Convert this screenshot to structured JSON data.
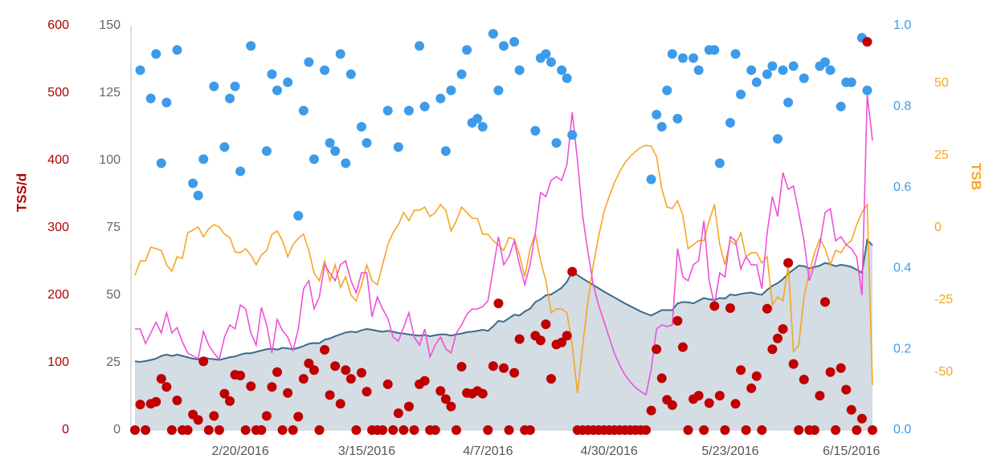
{
  "chart_data": {
    "type": "combo",
    "y_label": "TSS/d",
    "y4_label": "TSB",
    "ylim": [
      0,
      600
    ],
    "yticks": [
      0,
      100,
      200,
      300,
      400,
      500,
      600
    ],
    "y2lim": [
      0,
      150
    ],
    "y2ticks": [
      0,
      25,
      50,
      75,
      100,
      125,
      150
    ],
    "y3lim": [
      0,
      1
    ],
    "y3ticks": [
      {
        "value": 0,
        "label": "0.0"
      },
      0.2,
      0.4,
      0.6,
      0.8,
      {
        "value": 1,
        "label": "1.0"
      }
    ],
    "y4lim": [
      -70,
      70
    ],
    "y4ticks": [
      -50,
      -25,
      0,
      25,
      50
    ],
    "categories": [
      null,
      null,
      null,
      null,
      null,
      null,
      null,
      null,
      null,
      null,
      null,
      null,
      null,
      null,
      null,
      null,
      null,
      null,
      null,
      null,
      "2/20/2016",
      null,
      null,
      null,
      null,
      null,
      null,
      null,
      null,
      null,
      null,
      null,
      null,
      null,
      null,
      null,
      null,
      null,
      null,
      null,
      null,
      null,
      null,
      null,
      "3/15/2016",
      null,
      null,
      null,
      null,
      null,
      null,
      null,
      null,
      null,
      null,
      null,
      null,
      null,
      null,
      null,
      null,
      null,
      null,
      null,
      null,
      null,
      null,
      "4/7/2016",
      null,
      null,
      null,
      null,
      null,
      null,
      null,
      null,
      null,
      null,
      null,
      null,
      null,
      null,
      null,
      null,
      null,
      null,
      null,
      null,
      null,
      null,
      "4/30/2016",
      null,
      null,
      null,
      null,
      null,
      null,
      null,
      null,
      null,
      null,
      null,
      null,
      null,
      null,
      null,
      null,
      null,
      null,
      null,
      null,
      null,
      null,
      "5/23/2016",
      null,
      null,
      null,
      null,
      null,
      null,
      null,
      null,
      null,
      null,
      null,
      null,
      null,
      null,
      null,
      null,
      null,
      null,
      null,
      null,
      null,
      null,
      "6/15/2016",
      null,
      null,
      null,
      null
    ],
    "series": [
      {
        "kind": "area",
        "axis": "y2",
        "color": "#3b6a8a",
        "fill": "#cdd6df",
        "values": [
          25.5,
          25.3,
          25.6,
          26,
          26.5,
          27.5,
          28,
          27.5,
          28,
          27.5,
          27,
          26.5,
          26.2,
          27,
          26.5,
          26.3,
          26,
          26.5,
          27,
          27.3,
          28,
          28.5,
          28.5,
          29,
          29.5,
          30,
          30.2,
          29.8,
          30.5,
          30.3,
          30,
          30.5,
          31.2,
          32,
          32.3,
          32.2,
          33.5,
          34,
          34.8,
          35.5,
          36.2,
          36.5,
          36.3,
          37,
          37.5,
          37.2,
          36.8,
          36.5,
          36.8,
          36.5,
          36,
          35.8,
          35.5,
          35.2,
          35,
          35.3,
          34.8,
          35.2,
          35.5,
          35.5,
          35,
          35.5,
          35.8,
          36.3,
          36.5,
          36.8,
          37.2,
          36.8,
          38.5,
          40.5,
          40.2,
          41.5,
          42.8,
          42.5,
          44,
          45,
          47.5,
          48.5,
          50,
          50.3,
          51.5,
          52.8,
          55,
          58.8,
          57.5,
          56.2,
          55,
          53.8,
          52.6,
          51.4,
          50.3,
          49.2,
          48.1,
          47,
          46,
          45,
          44,
          43.2,
          42.5,
          43.5,
          44.5,
          44.5,
          44.5,
          47,
          47.5,
          47.4,
          47,
          48,
          49,
          48.5,
          48.3,
          49,
          48.8,
          50.3,
          50,
          50.5,
          50.8,
          51,
          50.5,
          50.2,
          52,
          53.5,
          54.5,
          56,
          58,
          59.5,
          61,
          60.8,
          60,
          60.5,
          61,
          62,
          61.5,
          60.8,
          61.3,
          61,
          60.5,
          59.5,
          58.3,
          70.5,
          68.5
        ]
      },
      {
        "kind": "line",
        "axis": "y4",
        "color": "#f5a623",
        "values": [
          -16.4,
          -11.4,
          -11.4,
          -6.7,
          -7.2,
          -7.8,
          -12.8,
          -15,
          -10,
          -10.6,
          -1.7,
          -0.8,
          0.3,
          -3.1,
          -0.3,
          1.1,
          0.3,
          -2.2,
          -3.3,
          -8.3,
          -8.6,
          -7.2,
          -9.4,
          -12.8,
          -9.4,
          -7.8,
          -2.2,
          -1.1,
          -4.4,
          -10,
          -5.8,
          -3.6,
          -2.2,
          -7.8,
          -15.6,
          -18.3,
          -11.4,
          -18.3,
          -12.8,
          -20.6,
          -16.9,
          -23.3,
          -25.3,
          -19.7,
          -12.8,
          -18.3,
          -19.7,
          -12.8,
          -5.8,
          -1.7,
          1.1,
          5.3,
          2.5,
          6.1,
          6.1,
          7.2,
          3.9,
          5.3,
          8.1,
          6.1,
          -1.1,
          2.5,
          7.2,
          5.3,
          3.3,
          3.3,
          -2.2,
          -2.2,
          -4.4,
          -6.1,
          -7.8,
          -3.3,
          -3.9,
          -9.4,
          -16.9,
          -7.2,
          -2.2,
          -11.4,
          -18.3,
          -29.4,
          -28.1,
          -28.1,
          -29.4,
          -40.6,
          -57.2,
          -40.6,
          -25.3,
          -12.8,
          -3.1,
          5.3,
          10.8,
          15.6,
          19.4,
          22.5,
          24.7,
          26.4,
          27.8,
          28.6,
          28.3,
          24.7,
          13.6,
          7.2,
          6.7,
          9.4,
          4.4,
          -7.2,
          -5.8,
          -4.4,
          -4.4,
          2.5,
          8.1,
          -5.8,
          -12.8,
          -4.4,
          -5.8,
          -1.7,
          -10,
          -8.6,
          -8.6,
          -12.2,
          -10,
          -26.7,
          -23.9,
          -25.3,
          -12.8,
          -42.8,
          -40.6,
          -23.9,
          -15.6,
          -8.6,
          -3.9,
          -7.2,
          -12.8,
          -7.8,
          -8.6,
          -5.8,
          -4.4,
          1.1,
          5.3,
          8.1,
          -54.4
        ]
      },
      {
        "kind": "line",
        "axis": "y2",
        "color": "#f050d8",
        "values": [
          37.5,
          37.5,
          32.1,
          36,
          40,
          36,
          43.5,
          36,
          38,
          32.7,
          28.6,
          27.5,
          26.5,
          36.6,
          31.5,
          28.6,
          26.2,
          34.5,
          39,
          37.5,
          46.4,
          45,
          36,
          31.5,
          45.5,
          39,
          28.6,
          41,
          36.9,
          34.5,
          29.5,
          37.5,
          52.4,
          55.4,
          45,
          49.4,
          61.3,
          58.3,
          55.4,
          61.3,
          62.8,
          55.4,
          50.9,
          58.3,
          58.3,
          42,
          49.4,
          45,
          41.4,
          34.5,
          33,
          38.1,
          43.5,
          34.5,
          31.5,
          37.5,
          27.1,
          31.5,
          34.5,
          30.1,
          28.6,
          36,
          39,
          42.9,
          44.9,
          44.9,
          45.8,
          47.9,
          59.8,
          71.7,
          61.3,
          64.3,
          70.2,
          61.3,
          53.9,
          61.3,
          73.2,
          88.1,
          86.6,
          92.6,
          94,
          92.6,
          98.5,
          117.9,
          100,
          79.2,
          65.8,
          53.9,
          46.4,
          40.5,
          34.5,
          28.6,
          24.1,
          20.5,
          17.9,
          15.8,
          14.3,
          13.1,
          22.6,
          37.5,
          39,
          38.4,
          39,
          67.3,
          56.8,
          55.4,
          61.3,
          62.8,
          77.7,
          55.4,
          46.4,
          58.3,
          56.8,
          71.7,
          70.2,
          59.8,
          64.3,
          61.3,
          61.3,
          52.4,
          73.2,
          86.6,
          79.2,
          95.5,
          89.3,
          90.5,
          80.7,
          70.2,
          55.4,
          61.3,
          68.8,
          80.7,
          82.1,
          70.2,
          71.7,
          68.8,
          67.3,
          64.3,
          50,
          124.4,
          107.4
        ]
      },
      {
        "kind": "scatter",
        "axis": "y3",
        "color": "#3d9be9",
        "values": [
          null,
          0.89,
          null,
          0.82,
          0.93,
          0.66,
          0.81,
          null,
          0.94,
          null,
          null,
          0.61,
          0.58,
          0.67,
          null,
          0.85,
          null,
          0.7,
          0.82,
          0.85,
          0.64,
          null,
          0.95,
          null,
          null,
          0.69,
          0.88,
          0.84,
          null,
          0.86,
          null,
          0.53,
          0.79,
          0.91,
          0.67,
          null,
          0.89,
          0.71,
          0.69,
          0.93,
          0.66,
          0.88,
          null,
          0.75,
          0.71,
          null,
          null,
          null,
          0.79,
          null,
          0.7,
          null,
          0.79,
          null,
          0.95,
          0.8,
          null,
          null,
          0.82,
          0.69,
          0.84,
          null,
          0.88,
          0.94,
          0.76,
          0.77,
          0.75,
          null,
          0.98,
          0.84,
          0.95,
          null,
          0.96,
          0.89,
          null,
          null,
          0.74,
          0.92,
          0.93,
          0.91,
          0.71,
          0.89,
          0.87,
          0.73,
          null,
          null,
          null,
          null,
          null,
          null,
          null,
          null,
          null,
          null,
          null,
          null,
          null,
          null,
          0.62,
          0.78,
          0.75,
          0.84,
          0.93,
          0.77,
          0.92,
          null,
          0.92,
          0.89,
          null,
          0.94,
          0.94,
          0.66,
          null,
          0.76,
          0.93,
          0.83,
          null,
          0.89,
          0.86,
          null,
          0.88,
          0.9,
          0.72,
          0.89,
          0.81,
          0.9,
          null,
          0.87,
          null,
          null,
          0.9,
          0.91,
          0.89,
          null,
          0.8,
          0.86,
          0.86,
          null,
          0.97,
          0.84,
          null
        ]
      },
      {
        "kind": "scatter",
        "axis": "y",
        "color": "#c00000",
        "values": [
          0,
          38,
          0,
          39,
          42,
          76,
          64,
          0,
          44,
          0,
          0,
          23,
          15,
          102,
          0,
          21,
          0,
          54,
          43,
          82,
          81,
          0,
          65,
          0,
          0,
          21,
          64,
          86,
          0,
          55,
          0,
          20,
          76,
          99,
          89,
          0,
          119,
          52,
          95,
          39,
          89,
          76,
          0,
          85,
          57,
          0,
          0,
          0,
          68,
          0,
          25,
          0,
          35,
          0,
          68,
          73,
          0,
          0,
          58,
          46,
          35,
          0,
          94,
          55,
          54,
          58,
          54,
          0,
          95,
          188,
          92,
          0,
          85,
          135,
          0,
          0,
          140,
          133,
          157,
          76,
          127,
          130,
          140,
          235,
          0,
          0,
          0,
          0,
          0,
          0,
          0,
          0,
          0,
          0,
          0,
          0,
          0,
          0,
          29,
          120,
          77,
          45,
          37,
          162,
          123,
          0,
          46,
          51,
          0,
          40,
          184,
          51,
          0,
          181,
          39,
          89,
          0,
          62,
          80,
          0,
          180,
          120,
          136,
          150,
          248,
          98,
          0,
          75,
          0,
          0,
          51,
          190,
          86,
          0,
          92,
          60,
          30,
          0,
          17,
          576,
          0
        ]
      }
    ]
  }
}
